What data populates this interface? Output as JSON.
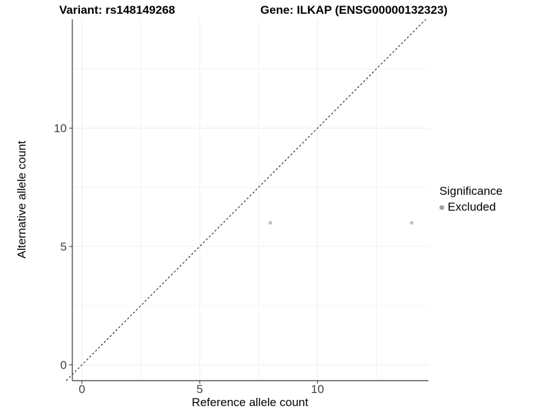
{
  "titles": {
    "left": "Variant: rs148149268",
    "right": "Gene: ILKAP (ENSG00000132323)"
  },
  "chart_data": {
    "type": "scatter",
    "xlabel": "Reference allele count",
    "ylabel": "Alternative allele count",
    "xlim": [
      -0.41,
      14.71
    ],
    "ylim": [
      -0.67,
      14.6
    ],
    "x_major_ticks": [
      0,
      5,
      10
    ],
    "y_major_ticks": [
      0,
      5,
      10
    ],
    "x_minor_ticks": [
      2.5,
      7.5,
      12.5
    ],
    "y_minor_ticks": [
      2.5,
      7.5,
      12.5
    ],
    "grid": "major+minor",
    "series": [
      {
        "name": "Excluded",
        "color": "#c4c4c4",
        "point_radius": 2.8,
        "points": [
          {
            "x": 8,
            "y": 6
          },
          {
            "x": 14,
            "y": 6
          }
        ]
      }
    ],
    "reference_line": {
      "type": "identity",
      "style": "dashed",
      "from": {
        "x": -0.67,
        "y": -0.67
      },
      "to": {
        "x": 14.6,
        "y": 14.6
      }
    },
    "legend": {
      "title": "Significance",
      "position": "right",
      "items": [
        {
          "label": "Excluded",
          "color": "#a3a3a3"
        }
      ]
    }
  },
  "colors": {
    "background": "#ffffff",
    "axis_line": "#333333",
    "tick_label": "#404040",
    "grid_major": "#ececec",
    "grid_minor": "#f4f4f4",
    "reference_line": "#1a1a1a"
  }
}
